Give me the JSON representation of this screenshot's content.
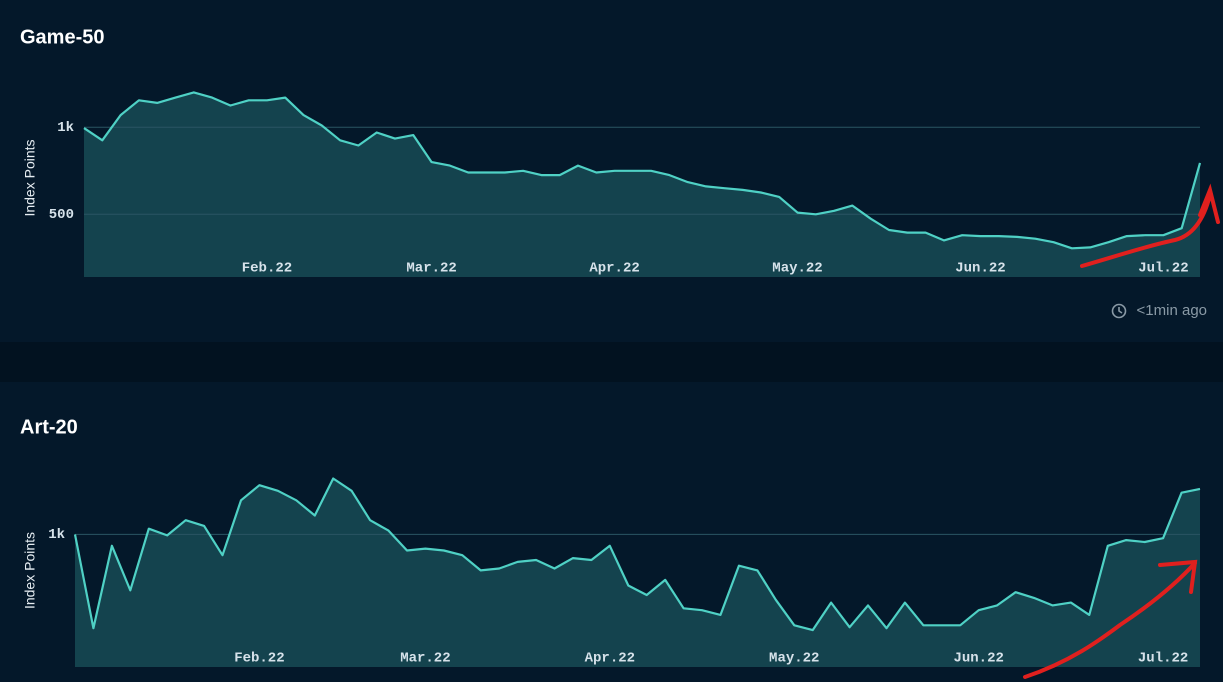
{
  "status": "<1min ago",
  "chart_data": [
    {
      "type": "line",
      "title": "Game-50",
      "y_label": "Index Points",
      "color": "#4fd1c5",
      "fill": "#14434e",
      "grid": true,
      "categories": [
        null,
        null,
        null,
        null,
        null,
        null,
        null,
        null,
        null,
        null,
        "Feb.22",
        null,
        null,
        null,
        null,
        null,
        null,
        null,
        null,
        "Mar.22",
        null,
        null,
        null,
        null,
        null,
        null,
        null,
        null,
        null,
        "Apr.22",
        null,
        null,
        null,
        null,
        null,
        null,
        null,
        null,
        null,
        "May.22",
        null,
        null,
        null,
        null,
        null,
        null,
        null,
        null,
        null,
        "Jun.22",
        null,
        null,
        null,
        null,
        null,
        null,
        null,
        null,
        null,
        "Jul.22",
        null,
        null
      ],
      "values": [
        995,
        925,
        1070,
        1155,
        1140,
        1170,
        1200,
        1170,
        1125,
        1155,
        1155,
        1170,
        1070,
        1010,
        925,
        895,
        970,
        935,
        955,
        800,
        780,
        740,
        740,
        740,
        750,
        725,
        725,
        780,
        740,
        750,
        750,
        750,
        725,
        685,
        660,
        650,
        640,
        625,
        600,
        510,
        500,
        520,
        550,
        475,
        410,
        395,
        395,
        350,
        380,
        375,
        375,
        370,
        360,
        340,
        305,
        310,
        340,
        375,
        380,
        380,
        420,
        795
      ],
      "ylim": [
        140,
        1300
      ],
      "yticks": [
        {
          "value": 500,
          "label": "500"
        },
        {
          "value": 1000,
          "label": "1k"
        }
      ]
    },
    {
      "type": "line",
      "title": "Art-20",
      "y_label": "Index Points",
      "color": "#4fd1c5",
      "fill": "#14434e",
      "grid": true,
      "categories": [
        null,
        null,
        null,
        null,
        null,
        null,
        null,
        null,
        null,
        null,
        "Feb.22",
        null,
        null,
        null,
        null,
        null,
        null,
        null,
        null,
        "Mar.22",
        null,
        null,
        null,
        null,
        null,
        null,
        null,
        null,
        null,
        "Apr.22",
        null,
        null,
        null,
        null,
        null,
        null,
        null,
        null,
        null,
        "May.22",
        null,
        null,
        null,
        null,
        null,
        null,
        null,
        null,
        null,
        "Jun.22",
        null,
        null,
        null,
        null,
        null,
        null,
        null,
        null,
        null,
        "Jul.22",
        null,
        null
      ],
      "values": [
        1000,
        505,
        940,
        705,
        1030,
        995,
        1075,
        1045,
        890,
        1180,
        1260,
        1230,
        1180,
        1100,
        1295,
        1230,
        1075,
        1020,
        915,
        925,
        915,
        890,
        810,
        820,
        855,
        865,
        820,
        875,
        865,
        940,
        730,
        680,
        760,
        610,
        600,
        575,
        835,
        810,
        655,
        520,
        495,
        640,
        510,
        625,
        505,
        640,
        520,
        520,
        520,
        600,
        625,
        695,
        665,
        625,
        640,
        575,
        940,
        970,
        960,
        980,
        1220,
        1240
      ],
      "ylim": [
        300,
        1340
      ],
      "yticks": [
        {
          "value": 1000,
          "label": "1k"
        }
      ]
    }
  ]
}
